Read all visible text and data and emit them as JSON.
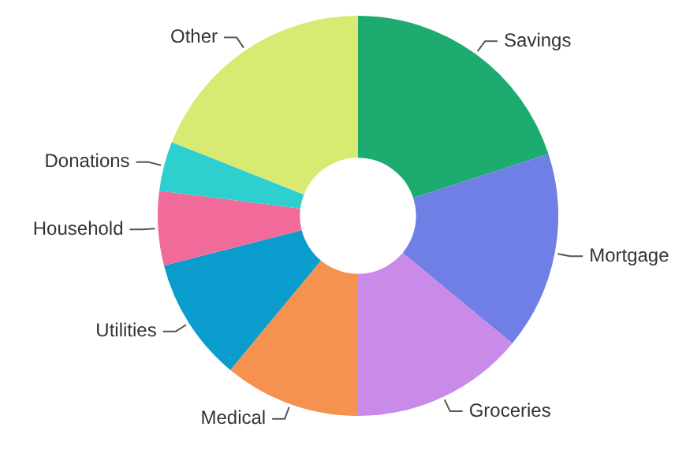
{
  "chart_data": {
    "type": "donut",
    "categories": [
      "Savings",
      "Mortgage",
      "Groceries",
      "Medical",
      "Utilities",
      "Household",
      "Donations",
      "Other"
    ],
    "values": [
      20,
      16,
      14,
      11,
      10,
      6,
      4,
      19
    ],
    "colors": [
      "#1eab6f",
      "#6f7fe6",
      "#c98ae8",
      "#f6924f",
      "#0a9ccc",
      "#f06a9a",
      "#2ecfcf",
      "#d9ea72"
    ],
    "legend": false
  }
}
